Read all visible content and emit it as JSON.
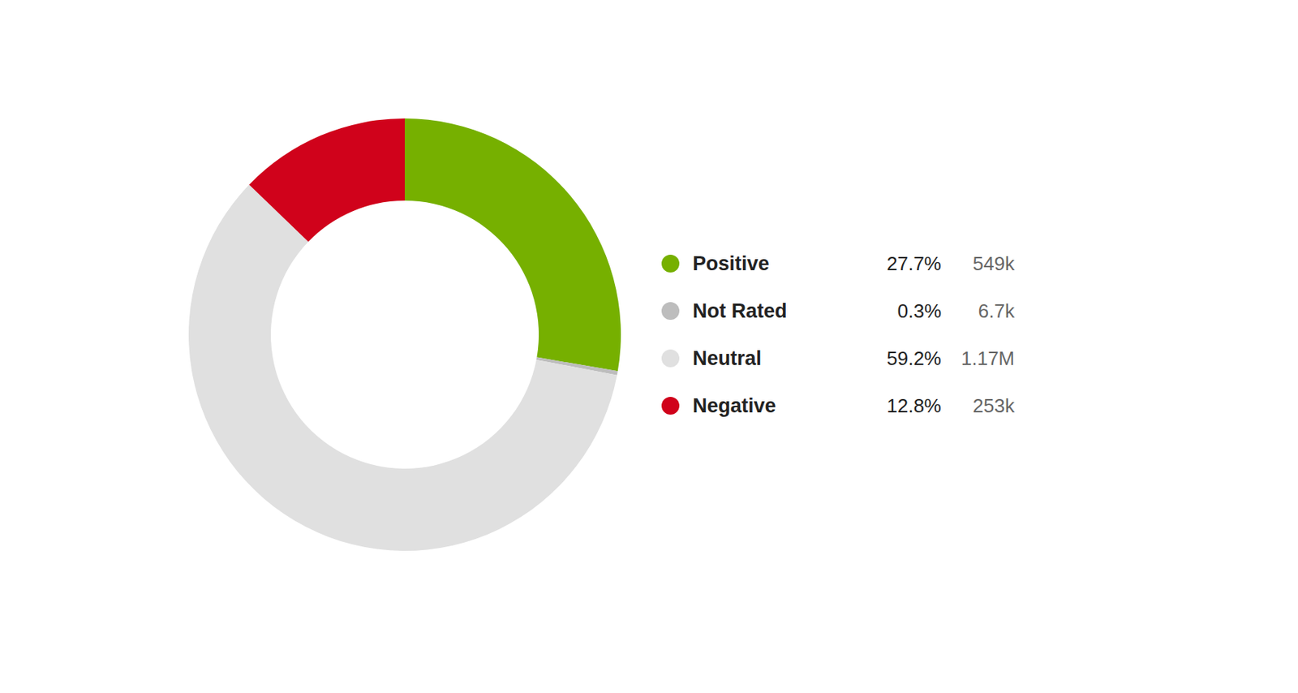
{
  "chart_data": {
    "type": "donut",
    "categories": [
      "Positive",
      "Not Rated",
      "Neutral",
      "Negative"
    ],
    "values": [
      27.7,
      0.3,
      59.2,
      12.8
    ],
    "value_labels": [
      "27.7%",
      "0.3%",
      "59.2%",
      "12.8%"
    ],
    "counts": [
      549000,
      6700,
      1170000,
      253000
    ],
    "count_labels": [
      "549k",
      "6.7k",
      "1.17M",
      "253k"
    ],
    "colors": [
      "#76b000",
      "#bdbdbd",
      "#e0e0e0",
      "#d0021b"
    ],
    "legend": "right"
  }
}
